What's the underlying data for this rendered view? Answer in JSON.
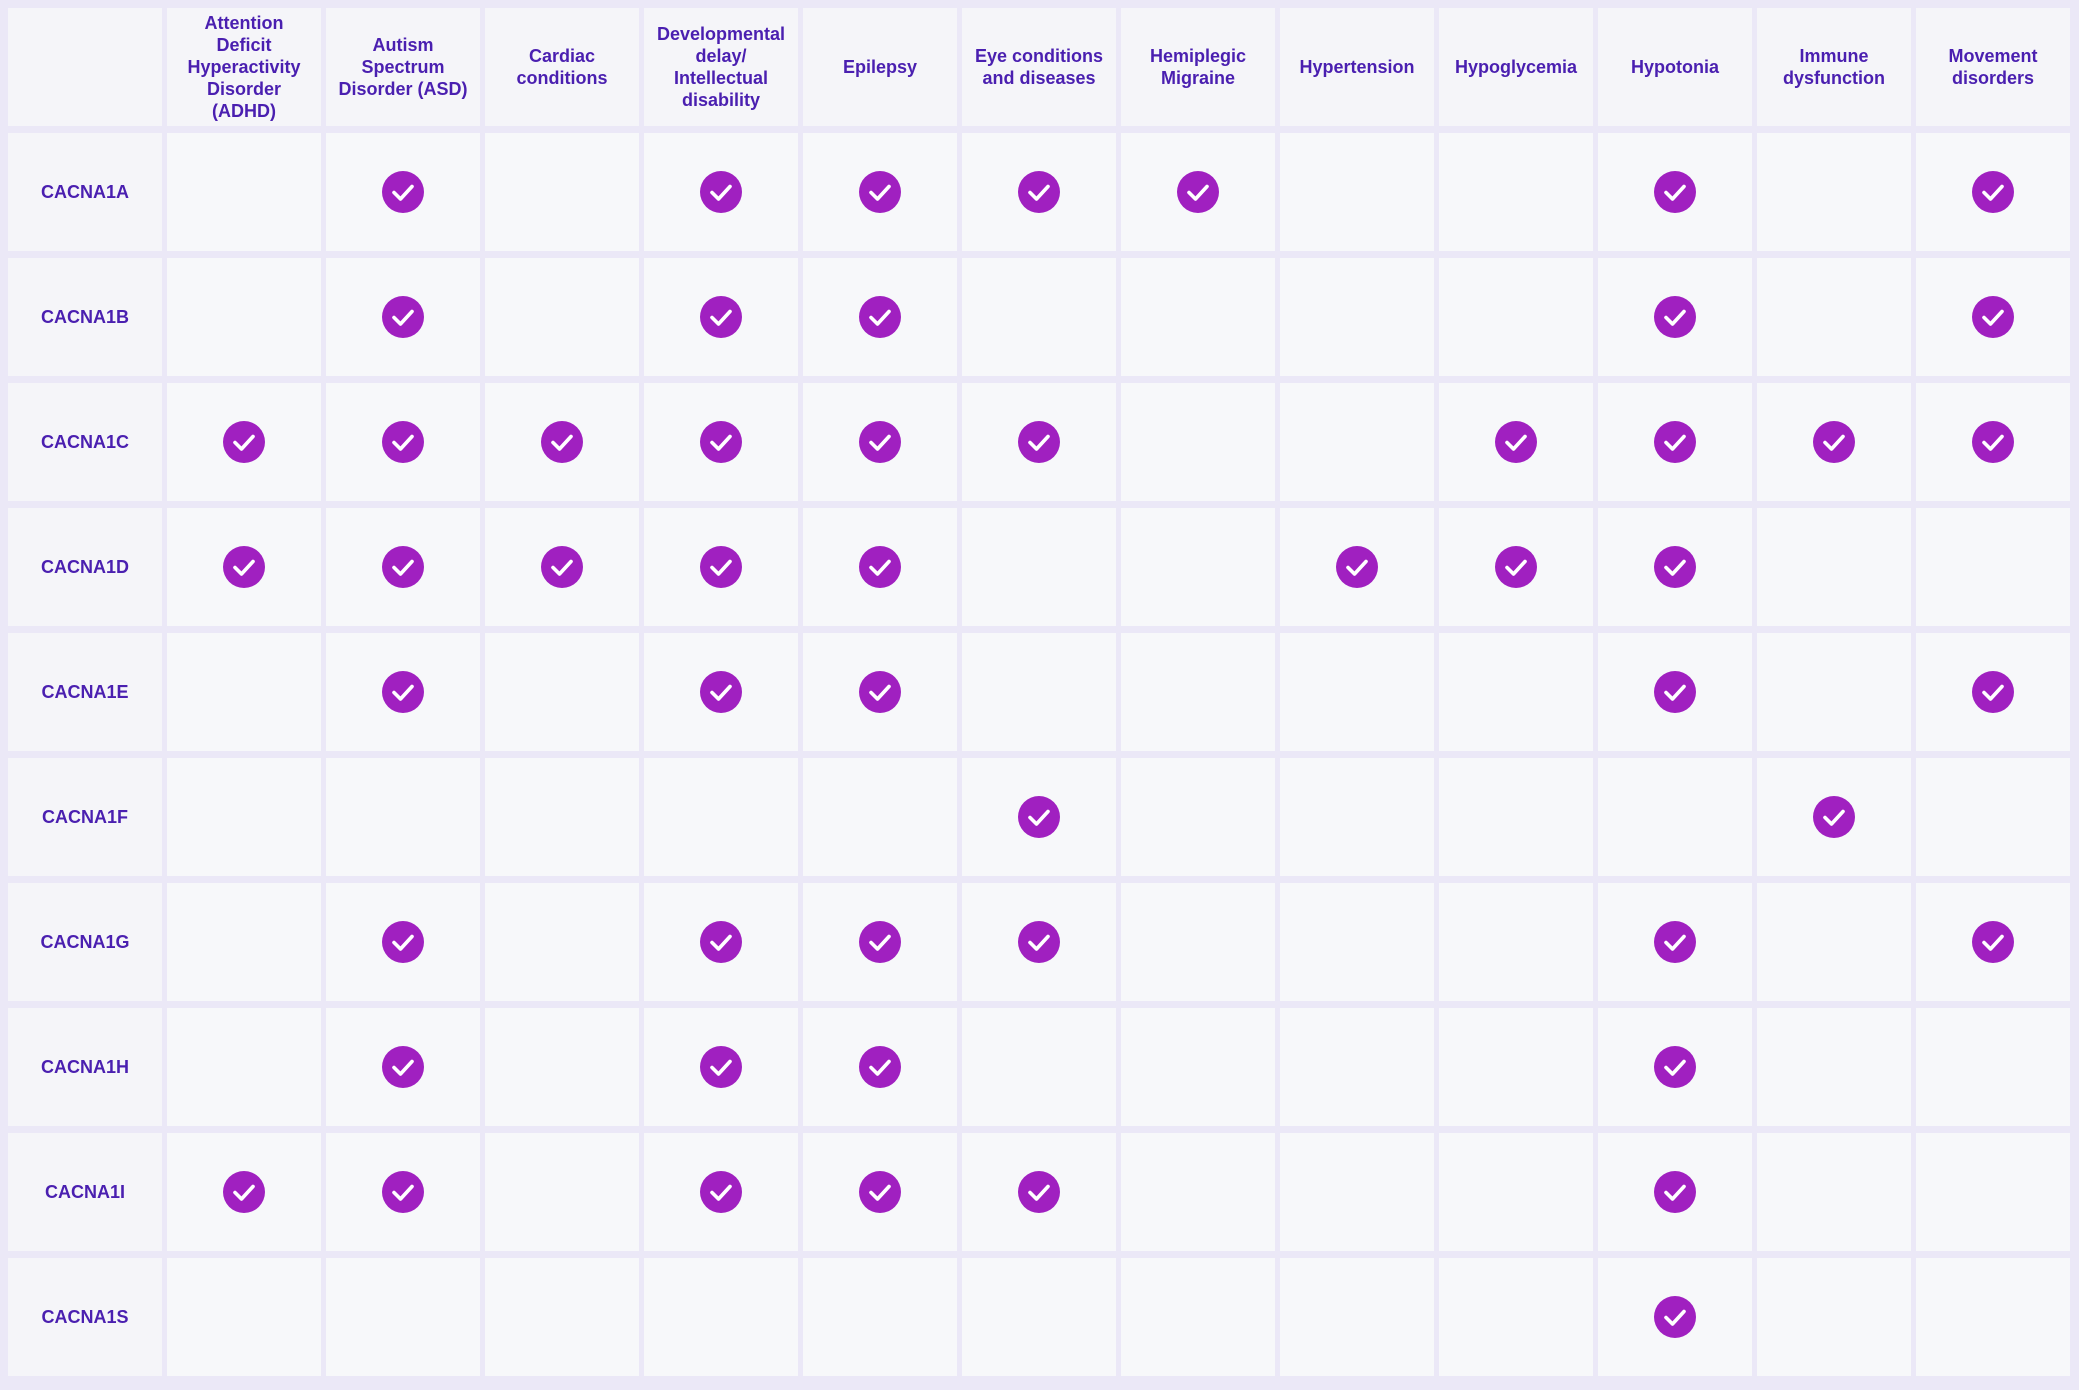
{
  "table": {
    "corner": "",
    "columns": [
      "Attention Deficit Hyperactivity Disorder (ADHD)",
      "Autism Spectrum Disorder (ASD)",
      "Cardiac conditions",
      "Developmental delay/ Intellectual disability",
      "Epilepsy",
      "Eye conditions and diseases",
      "Hemiplegic Migraine",
      "Hypertension",
      "Hypoglycemia",
      "Hypotonia",
      "Immune dysfunction",
      "Movement disorders"
    ],
    "rows": [
      {
        "gene": "CACNA1A",
        "checks": [
          false,
          true,
          false,
          true,
          true,
          true,
          true,
          false,
          false,
          true,
          false,
          true
        ]
      },
      {
        "gene": "CACNA1B",
        "checks": [
          false,
          true,
          false,
          true,
          true,
          false,
          false,
          false,
          false,
          true,
          false,
          true
        ]
      },
      {
        "gene": "CACNA1C",
        "checks": [
          true,
          true,
          true,
          true,
          true,
          true,
          false,
          false,
          true,
          true,
          true,
          true
        ]
      },
      {
        "gene": "CACNA1D",
        "checks": [
          true,
          true,
          true,
          true,
          true,
          false,
          false,
          true,
          true,
          true,
          false,
          false
        ]
      },
      {
        "gene": "CACNA1E",
        "checks": [
          false,
          true,
          false,
          true,
          true,
          false,
          false,
          false,
          false,
          true,
          false,
          true
        ]
      },
      {
        "gene": "CACNA1F",
        "checks": [
          false,
          false,
          false,
          false,
          false,
          true,
          false,
          false,
          false,
          false,
          true,
          false
        ]
      },
      {
        "gene": "CACNA1G",
        "checks": [
          false,
          true,
          false,
          true,
          true,
          true,
          false,
          false,
          false,
          true,
          false,
          true
        ]
      },
      {
        "gene": "CACNA1H",
        "checks": [
          false,
          true,
          false,
          true,
          true,
          false,
          false,
          false,
          false,
          true,
          false,
          false
        ]
      },
      {
        "gene": "CACNA1I",
        "checks": [
          true,
          true,
          false,
          true,
          true,
          true,
          false,
          false,
          false,
          true,
          false,
          false
        ]
      },
      {
        "gene": "CACNA1S",
        "checks": [
          false,
          false,
          false,
          false,
          false,
          false,
          false,
          false,
          false,
          true,
          false,
          false
        ]
      }
    ]
  },
  "colors": {
    "check_fill": "#a020c0",
    "check_mark": "#ffffff",
    "text": "#4a1fb0"
  },
  "icons": {
    "check": "check-circle-icon"
  }
}
